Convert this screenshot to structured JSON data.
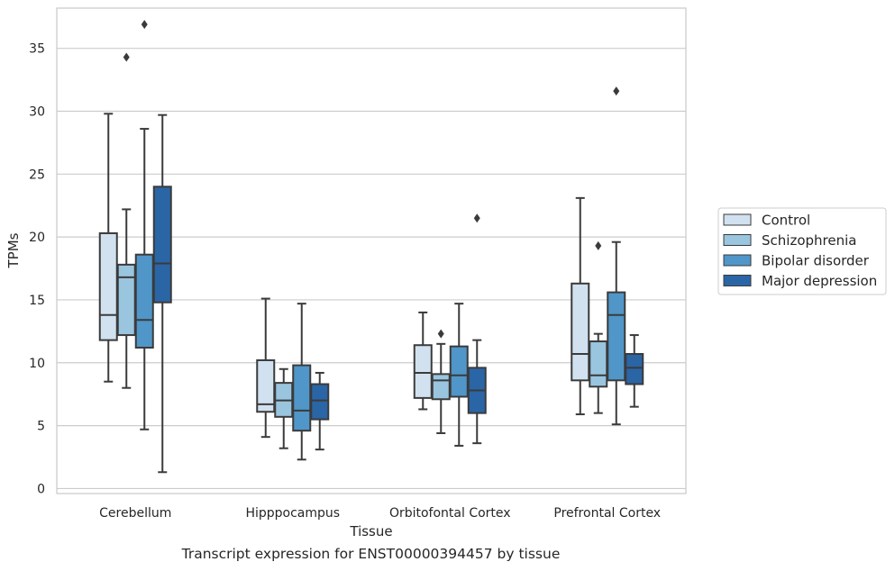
{
  "caption": "Transcript expression for ENST00000394457 by tissue",
  "chart_data": {
    "type": "box",
    "xlabel": "Tissue",
    "ylabel": "TPMs",
    "ylim": [
      -0.4,
      38.2
    ],
    "yticks": [
      0,
      5,
      10,
      15,
      20,
      25,
      30,
      35
    ],
    "grid": "horizontal",
    "legend_position": "right",
    "categories": [
      "Cerebellum",
      "Hipppocampus",
      "Orbitofontal Cortex",
      "Prefrontal Cortex"
    ],
    "series": [
      {
        "name": "Control",
        "color": "#d1e1f0",
        "boxes": [
          {
            "whislo": 8.5,
            "q1": 11.8,
            "med": 13.8,
            "q3": 20.3,
            "whishi": 29.8,
            "fliers": []
          },
          {
            "whislo": 4.1,
            "q1": 6.1,
            "med": 6.7,
            "q3": 10.2,
            "whishi": 15.1,
            "fliers": []
          },
          {
            "whislo": 6.3,
            "q1": 7.2,
            "med": 9.2,
            "q3": 11.4,
            "whishi": 14.0,
            "fliers": []
          },
          {
            "whislo": 5.9,
            "q1": 8.6,
            "med": 10.7,
            "q3": 16.3,
            "whishi": 23.1,
            "fliers": []
          }
        ]
      },
      {
        "name": "Schizophrenia",
        "color": "#9ac5df",
        "boxes": [
          {
            "whislo": 8.0,
            "q1": 12.2,
            "med": 16.8,
            "q3": 17.8,
            "whishi": 22.2,
            "fliers": [
              34.3
            ]
          },
          {
            "whislo": 3.2,
            "q1": 5.7,
            "med": 7.0,
            "q3": 8.4,
            "whishi": 9.5,
            "fliers": []
          },
          {
            "whislo": 4.4,
            "q1": 7.1,
            "med": 8.6,
            "q3": 9.1,
            "whishi": 11.5,
            "fliers": [
              12.3
            ]
          },
          {
            "whislo": 6.0,
            "q1": 8.1,
            "med": 9.0,
            "q3": 11.7,
            "whishi": 12.3,
            "fliers": [
              19.3
            ]
          }
        ]
      },
      {
        "name": "Bipolar disorder",
        "color": "#5096c8",
        "boxes": [
          {
            "whislo": 4.7,
            "q1": 11.2,
            "med": 13.4,
            "q3": 18.6,
            "whishi": 28.6,
            "fliers": [
              36.9
            ]
          },
          {
            "whislo": 2.3,
            "q1": 4.6,
            "med": 6.2,
            "q3": 9.8,
            "whishi": 14.7,
            "fliers": []
          },
          {
            "whislo": 3.4,
            "q1": 7.3,
            "med": 9.0,
            "q3": 11.3,
            "whishi": 14.7,
            "fliers": []
          },
          {
            "whislo": 5.1,
            "q1": 8.6,
            "med": 13.8,
            "q3": 15.6,
            "whishi": 19.6,
            "fliers": [
              31.6
            ]
          }
        ]
      },
      {
        "name": "Major depression",
        "color": "#2a65a6",
        "boxes": [
          {
            "whislo": 1.3,
            "q1": 14.8,
            "med": 17.9,
            "q3": 24.0,
            "whishi": 29.7,
            "fliers": []
          },
          {
            "whislo": 3.1,
            "q1": 5.5,
            "med": 7.0,
            "q3": 8.3,
            "whishi": 9.2,
            "fliers": []
          },
          {
            "whislo": 3.6,
            "q1": 6.0,
            "med": 7.8,
            "q3": 9.6,
            "whishi": 11.8,
            "fliers": [
              21.5
            ]
          },
          {
            "whislo": 6.5,
            "q1": 8.3,
            "med": 9.6,
            "q3": 10.7,
            "whishi": 12.2,
            "fliers": []
          }
        ]
      }
    ]
  }
}
